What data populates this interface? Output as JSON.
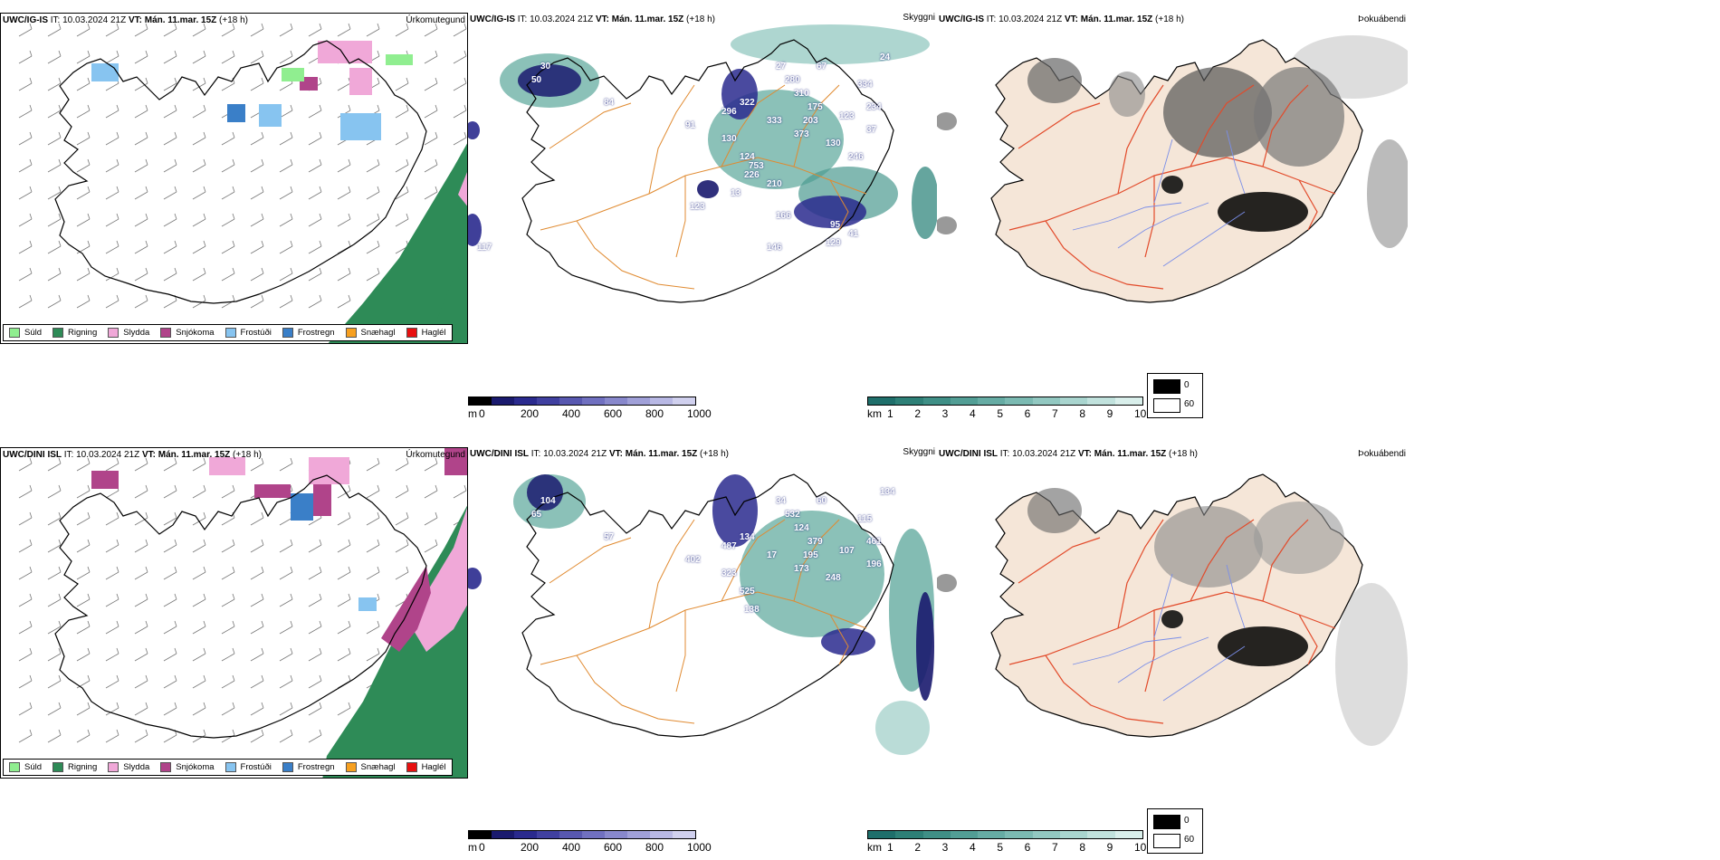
{
  "rows": [
    {
      "model": "UWC/IG-IS",
      "it_label": "IT:",
      "it_value": "10.03.2024 21Z",
      "vt_label": "VT:",
      "vt_value": "Mán. 11.mar. 15Z",
      "lead": "(+18 h)",
      "numbers": [
        "50",
        "30",
        "84",
        "27",
        "67",
        "24",
        "334",
        "280",
        "310",
        "175",
        "322",
        "296",
        "333",
        "203",
        "123",
        "373",
        "130",
        "91",
        "234",
        "130",
        "37",
        "124",
        "226",
        "246",
        "753",
        "210",
        "13",
        "123",
        "166",
        "95",
        "129",
        "146",
        "117",
        "41"
      ]
    },
    {
      "model": "UWC/DINI ISL",
      "it_label": "IT:",
      "it_value": "10.03.2024 21Z",
      "vt_label": "VT:",
      "vt_value": "Mán. 11.mar. 15Z",
      "lead": "(+18 h)",
      "numbers": [
        "65",
        "104",
        "57",
        "34",
        "60",
        "134",
        "115",
        "532",
        "124",
        "379",
        "134",
        "487",
        "17",
        "195",
        "107",
        "173",
        "248",
        "402",
        "461",
        "323",
        "196",
        "525",
        "138"
      ]
    }
  ],
  "panel_titles": {
    "precip": "Úrkomutegund",
    "cloud": "Skyggni",
    "fog": "Þokuábendi"
  },
  "precip_legend": [
    {
      "label": "Súld",
      "color": "#90ee90"
    },
    {
      "label": "Rigning",
      "color": "#2e8b57"
    },
    {
      "label": "Slydda",
      "color": "#f0a8d8"
    },
    {
      "label": "Snjókoma",
      "color": "#b0448a"
    },
    {
      "label": "Frostúði",
      "color": "#87c4f0"
    },
    {
      "label": "Frostregn",
      "color": "#3a7fc8"
    },
    {
      "label": "Snæhagl",
      "color": "#f7a020"
    },
    {
      "label": "Haglél",
      "color": "#e81010"
    }
  ],
  "colorbar_m": {
    "unit": "m",
    "ticks": [
      "0",
      "200",
      "400",
      "600",
      "800",
      "1000"
    ],
    "colors": [
      "#000000",
      "#1a1a6e",
      "#2a2a8e",
      "#4040a0",
      "#5858b0",
      "#7070c0",
      "#8888cc",
      "#a0a0d8",
      "#b8b8e4",
      "#d0d0ee"
    ]
  },
  "colorbar_km": {
    "unit": "km",
    "ticks": [
      "1",
      "2",
      "3",
      "4",
      "5",
      "6",
      "7",
      "8",
      "9",
      "10"
    ],
    "colors": [
      "#1f6f6b",
      "#2e8077",
      "#3f8f86",
      "#529e95",
      "#66aca4",
      "#7bbab2",
      "#92c8c1",
      "#a9d5cf",
      "#c1e2dd",
      "#d9efeb"
    ]
  },
  "fog_key": {
    "black": "0",
    "white": "60"
  }
}
